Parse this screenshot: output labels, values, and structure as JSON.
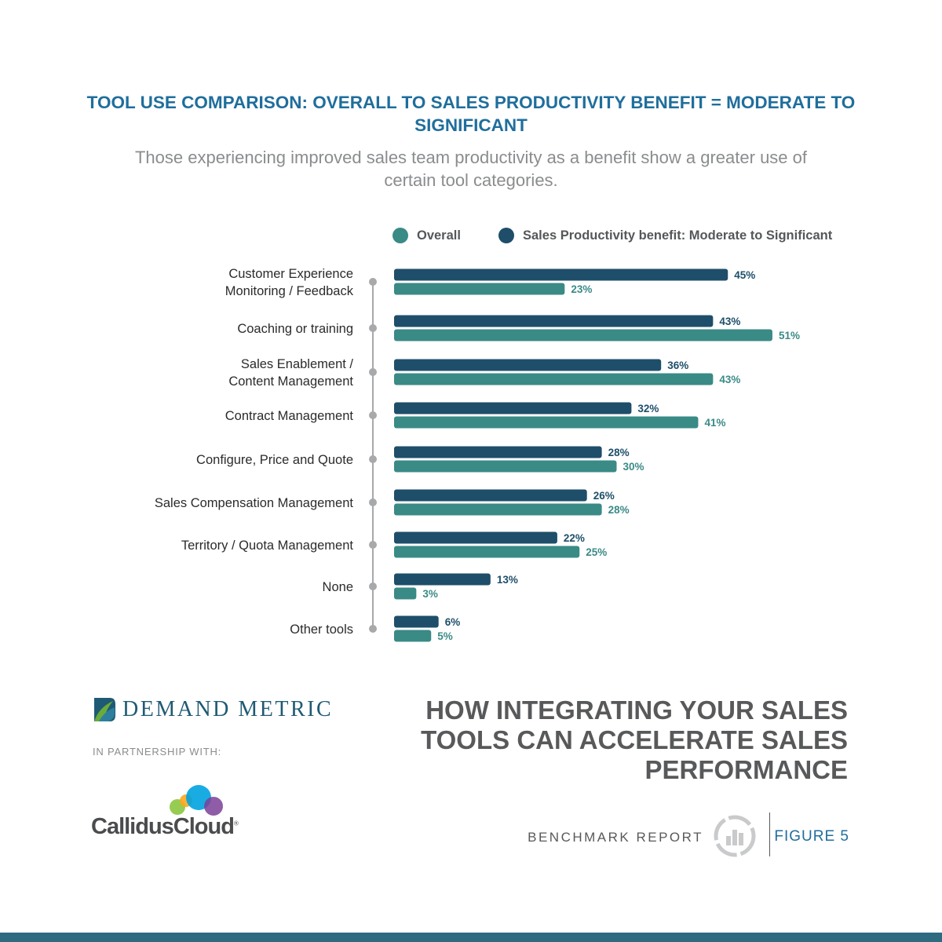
{
  "title": "TOOL USE COMPARISON: OVERALL TO SALES PRODUCTIVITY BENEFIT = MODERATE TO SIGNIFICANT",
  "subtitle": "Those experiencing improved sales team productivity as a benefit show a greater use of certain tool categories.",
  "colors": {
    "overall": "#3a8a86",
    "benefit": "#1e4e69",
    "title": "#1f6e9c",
    "axis": "#a7a9ab"
  },
  "chart_data": {
    "type": "bar",
    "orientation": "horizontal",
    "legend_position": "top",
    "grid": false,
    "xlim": [
      0,
      60
    ],
    "categories": [
      "Customer Experience Monitoring / Feedback",
      "Coaching or training",
      "Sales Enablement / Content Management",
      "Contract Management",
      "Configure, Price and Quote",
      "Sales Compensation Management",
      "Territory / Quota Management",
      "None",
      "Other tools"
    ],
    "series": [
      {
        "name": "Sales Productivity benefit: Moderate to Significant",
        "values": [
          45,
          43,
          36,
          32,
          28,
          26,
          22,
          13,
          6
        ]
      },
      {
        "name": "Overall",
        "values": [
          23,
          51,
          43,
          41,
          30,
          28,
          25,
          3,
          5
        ]
      }
    ],
    "value_labels": [
      [
        "45%",
        "43%",
        "36%",
        "32%",
        "28%",
        "26%",
        "22%",
        "13%",
        "6%"
      ],
      [
        "23%",
        "51%",
        "43%",
        "41%",
        "30%",
        "28%",
        "25%",
        "3%",
        "5%"
      ]
    ]
  },
  "legend": {
    "overall": "Overall",
    "benefit": "Sales Productivity benefit: Moderate to Significant"
  },
  "branding": {
    "demand_metric": "Demand Metric",
    "partnership": "IN PARTNERSHIP WITH:",
    "partner": "CallidusCloud",
    "partner_mark": "®"
  },
  "report": {
    "title": "HOW INTEGRATING YOUR SALES TOOLS CAN ACCELERATE SALES PERFORMANCE",
    "benchmark": "BENCHMARK REPORT",
    "figure": "FIGURE 5"
  },
  "icons": {
    "benchmark": "bar-chart-circle-icon",
    "demand_metric_logo": "demand-metric-logo-icon",
    "partner_logo": "callidus-bubbles-icon"
  }
}
